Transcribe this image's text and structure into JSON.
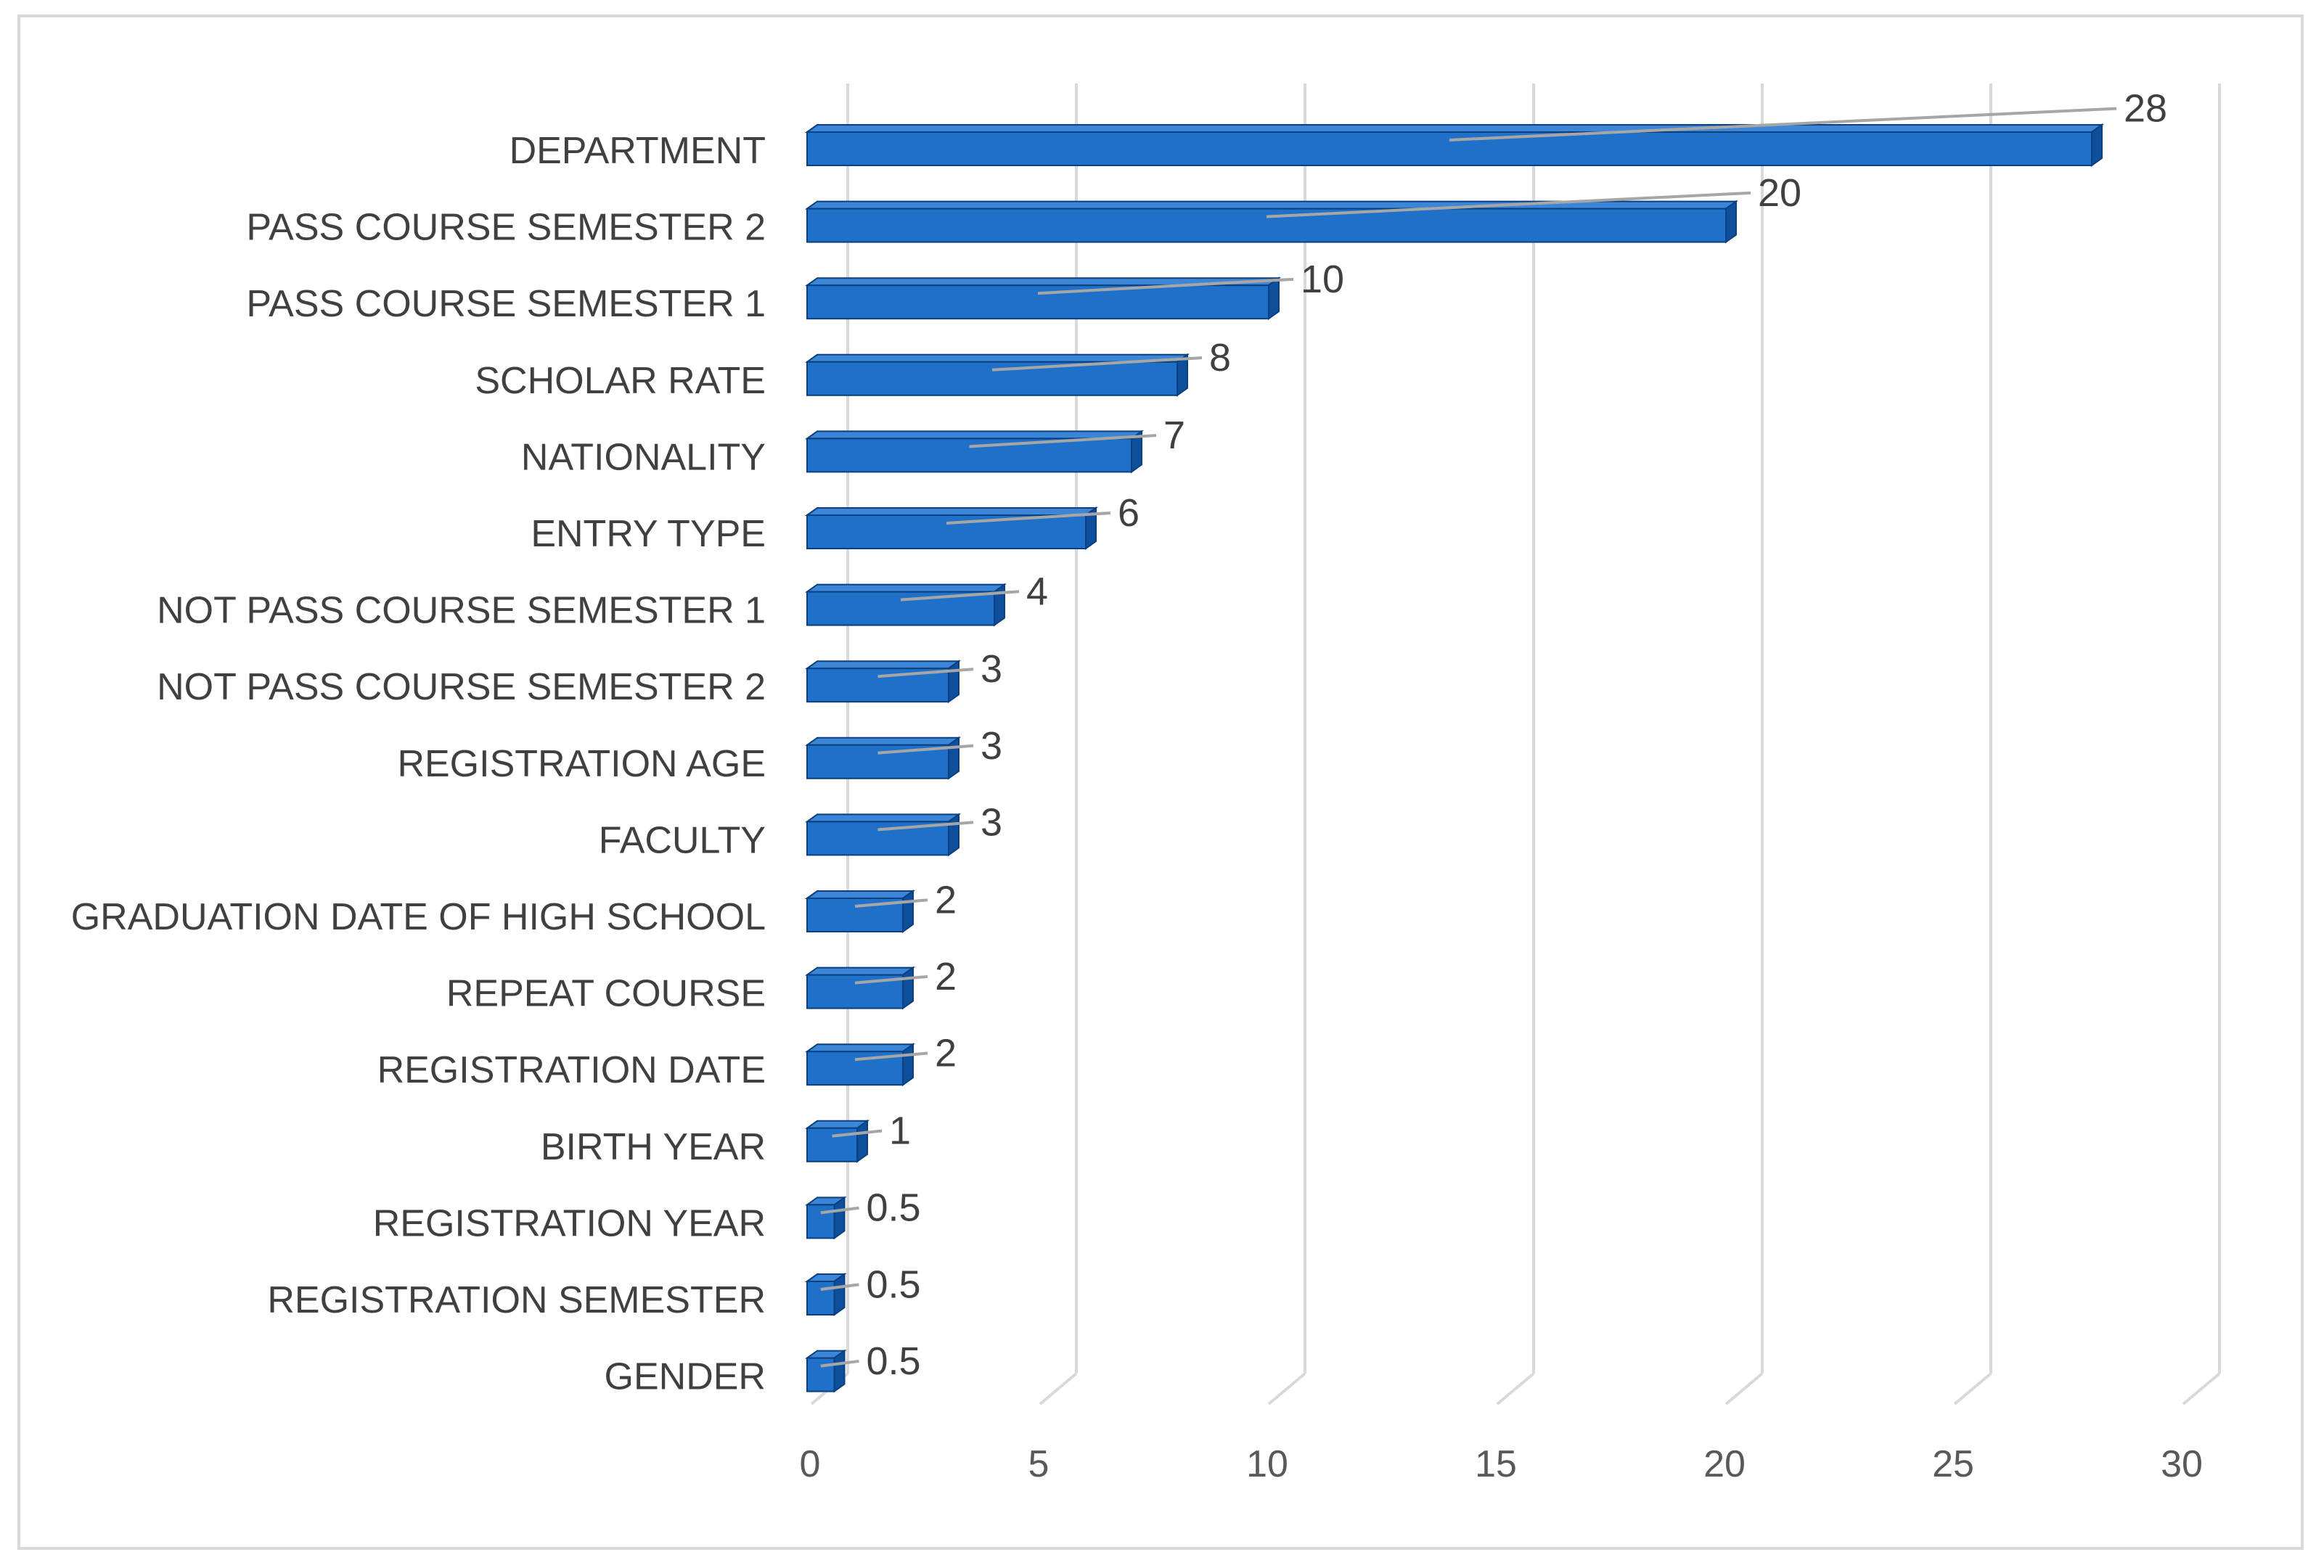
{
  "chart_data": {
    "type": "bar",
    "orientation": "horizontal",
    "style": "3d-clustered-bar",
    "title": "",
    "xlabel": "",
    "ylabel": "",
    "xlim": [
      0,
      30
    ],
    "x_ticks": [
      0,
      5,
      10,
      15,
      20,
      25,
      30
    ],
    "grid": true,
    "legend": "none",
    "categories": [
      "DEPARTMENT",
      "PASS COURSE SEMESTER 2",
      "PASS COURSE SEMESTER 1",
      "SCHOLAR RATE",
      "NATIONALITY",
      "ENTRY TYPE",
      "NOT PASS COURSE SEMESTER 1",
      "NOT PASS COURSE SEMESTER 2",
      "REGISTRATION AGE",
      "FACULTY",
      "GRADUATION DATE OF HIGH SCHOOL",
      "REPEAT COURSE",
      "REGISTRATION DATE",
      "BIRTH YEAR",
      "REGISTRATION YEAR",
      "REGISTRATION SEMESTER",
      "GENDER"
    ],
    "values": [
      28,
      20,
      10,
      8,
      7,
      6,
      4,
      3,
      3,
      3,
      2,
      2,
      2,
      1,
      0.5,
      0.5,
      0.5
    ],
    "data_labels": [
      "28",
      "20",
      "10",
      "8",
      "7",
      "6",
      "4",
      "3",
      "3",
      "3",
      "2",
      "2",
      "2",
      "1",
      "0.5",
      "0.5",
      "0.5"
    ],
    "colors": {
      "bar_front": "#1f70c8",
      "bar_top": "#3b86d6",
      "bar_side": "#0e4f9c",
      "bar_edge": "#0b3f80",
      "gridline": "#d9d9d9",
      "leader_line": "#a6a6a6"
    }
  }
}
